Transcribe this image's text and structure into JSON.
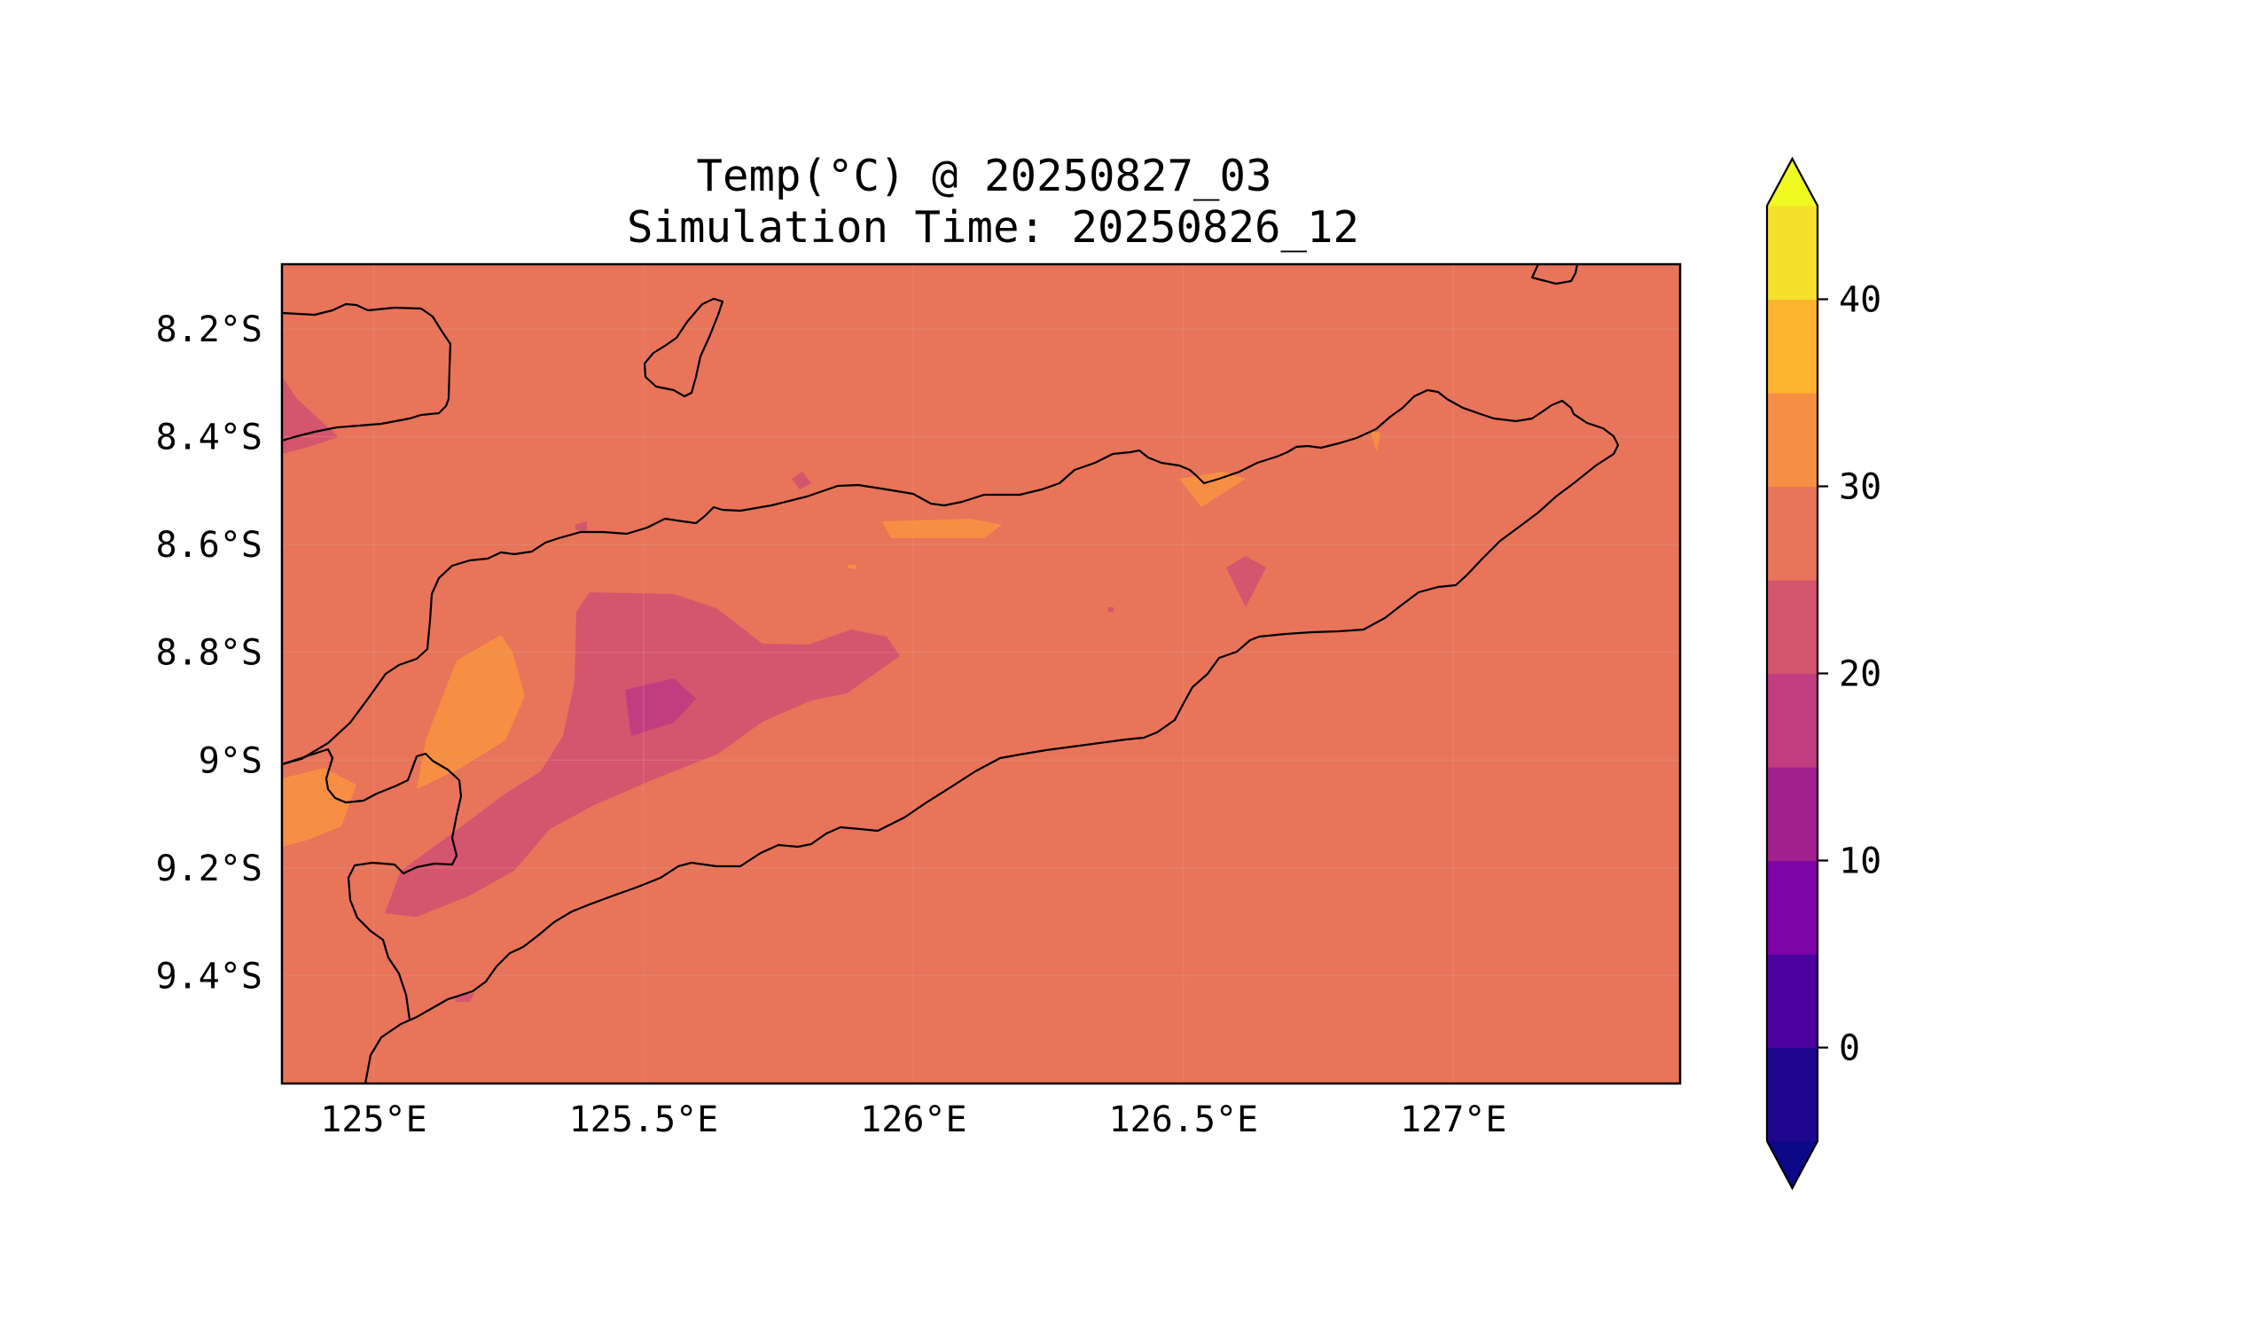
{
  "title": {
    "line1": "Temp(°C) @ 20250827_03",
    "line2": "Simulation Time: 20250826_12"
  },
  "map": {
    "x_ticks": [
      "125°E",
      "125.5°E",
      "126°E",
      "126.5°E",
      "127°E"
    ],
    "y_ticks": [
      "8.2°S",
      "8.4°S",
      "8.6°S",
      "8.8°S",
      "9°S",
      "9.2°S",
      "9.4°S"
    ],
    "extent": {
      "lon": [
        124.83,
        127.42
      ],
      "lat": [
        -9.6,
        -8.08
      ]
    },
    "gridlines": true
  },
  "colorbar": {
    "levels": [
      -5,
      0,
      5,
      10,
      15,
      20,
      25,
      30,
      35,
      40,
      45
    ],
    "colors": [
      "#1f068f",
      "#4b02a1",
      "#7e03a8",
      "#a2208d",
      "#c13d7f",
      "#d5546e",
      "#e8745a",
      "#f68f44",
      "#fdb32f",
      "#f3e12c"
    ],
    "under_color": "#0d0887",
    "over_color": "#f0f921",
    "tick_labels": [
      "0",
      "10",
      "20",
      "30",
      "40"
    ],
    "extend": "both"
  },
  "chart_data": {
    "type": "heatmap",
    "title": "Temp(°C) @ 20250827_03\nSimulation Time: 20250826_12",
    "xlabel": "",
    "ylabel": "",
    "colorbar_range": [
      -5,
      45
    ],
    "dominant_value_range": [
      25,
      30
    ],
    "regions": [
      {
        "name": "background",
        "value_range": [
          25,
          30
        ]
      },
      {
        "name": "central-highland",
        "value_range": [
          20,
          25
        ]
      },
      {
        "name": "central-peak",
        "value_range": [
          15,
          20
        ]
      },
      {
        "name": "west-warm-patch",
        "value_range": [
          30,
          35
        ]
      },
      {
        "name": "southwest-warm-patch",
        "value_range": [
          30,
          35
        ]
      },
      {
        "name": "north-coast-warm-patch",
        "value_range": [
          30,
          35
        ]
      }
    ]
  }
}
